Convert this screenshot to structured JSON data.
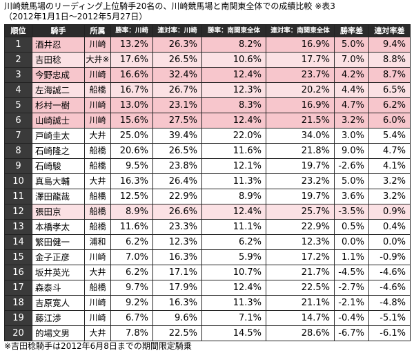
{
  "header": {
    "title": "川崎競馬場のリーディング上位騎手20名の、川崎競馬場と南関東全体での成績比較 ※表3",
    "subtitle": "（2012年1月1日〜2012年5月27日）"
  },
  "table": {
    "columns": [
      "順位",
      "騎手",
      "所属",
      "勝率：川崎",
      "連対率：川崎",
      "勝率：南関東全体",
      "連対率：南関東全体",
      "勝率差",
      "連対率差"
    ],
    "rows": [
      {
        "rank": "1",
        "name": "酒井忍",
        "aff": "川崎",
        "win_k": "13.2%",
        "place_k": "26.3%",
        "win_s": "8.2%",
        "place_s": "16.9%",
        "win_diff": "5.0%",
        "place_diff": "9.4%",
        "hl": "hl1"
      },
      {
        "rank": "2",
        "name": "吉田稔",
        "aff": "大井※",
        "win_k": "17.6%",
        "place_k": "26.5%",
        "win_s": "10.6%",
        "place_s": "17.7%",
        "win_diff": "7.0%",
        "place_diff": "8.8%",
        "hl": "hl2"
      },
      {
        "rank": "3",
        "name": "今野忠成",
        "aff": "川崎",
        "win_k": "16.6%",
        "place_k": "32.4%",
        "win_s": "12.4%",
        "place_s": "23.7%",
        "win_diff": "4.2%",
        "place_diff": "8.7%",
        "hl": "hl1"
      },
      {
        "rank": "4",
        "name": "左海誠二",
        "aff": "船橋",
        "win_k": "16.7%",
        "place_k": "26.7%",
        "win_s": "12.3%",
        "place_s": "20.2%",
        "win_diff": "4.4%",
        "place_diff": "6.5%",
        "hl": "hl2"
      },
      {
        "rank": "5",
        "name": "杉村一樹",
        "aff": "川崎",
        "win_k": "13.0%",
        "place_k": "23.1%",
        "win_s": "8.3%",
        "place_s": "16.9%",
        "win_diff": "4.7%",
        "place_diff": "6.2%",
        "hl": "hl1"
      },
      {
        "rank": "6",
        "name": "山崎誠士",
        "aff": "川崎",
        "win_k": "15.6%",
        "place_k": "27.5%",
        "win_s": "12.4%",
        "place_s": "21.5%",
        "win_diff": "3.2%",
        "place_diff": "6.0%",
        "hl": "hl1"
      },
      {
        "rank": "7",
        "name": "戸崎圭太",
        "aff": "大井",
        "win_k": "25.0%",
        "place_k": "39.4%",
        "win_s": "22.0%",
        "place_s": "34.0%",
        "win_diff": "3.0%",
        "place_diff": "5.4%",
        "hl": ""
      },
      {
        "rank": "8",
        "name": "石崎隆之",
        "aff": "船橋",
        "win_k": "20.6%",
        "place_k": "26.5%",
        "win_s": "11.6%",
        "place_s": "21.8%",
        "win_diff": "9.0%",
        "place_diff": "4.7%",
        "hl": ""
      },
      {
        "rank": "9",
        "name": "石崎駿",
        "aff": "船橋",
        "win_k": "9.5%",
        "place_k": "23.8%",
        "win_s": "12.1%",
        "place_s": "19.7%",
        "win_diff": "-2.6%",
        "place_diff": "4.1%",
        "hl": ""
      },
      {
        "rank": "10",
        "name": "真島大輔",
        "aff": "大井",
        "win_k": "16.3%",
        "place_k": "26.4%",
        "win_s": "11.3%",
        "place_s": "23.2%",
        "win_diff": "5.0%",
        "place_diff": "3.2%",
        "hl": ""
      },
      {
        "rank": "11",
        "name": "澤田龍哉",
        "aff": "船橋",
        "win_k": "12.5%",
        "place_k": "22.9%",
        "win_s": "8.9%",
        "place_s": "19.7%",
        "win_diff": "3.6%",
        "place_diff": "3.2%",
        "hl": ""
      },
      {
        "rank": "12",
        "name": "張田京",
        "aff": "船橋",
        "win_k": "8.9%",
        "place_k": "26.6%",
        "win_s": "12.4%",
        "place_s": "25.7%",
        "win_diff": "-3.5%",
        "place_diff": "0.9%",
        "hl": "hl2"
      },
      {
        "rank": "13",
        "name": "本橋孝太",
        "aff": "船橋",
        "win_k": "11.6%",
        "place_k": "23.3%",
        "win_s": "11.1%",
        "place_s": "22.9%",
        "win_diff": "0.5%",
        "place_diff": "0.4%",
        "hl": ""
      },
      {
        "rank": "14",
        "name": "繁田健一",
        "aff": "浦和",
        "win_k": "6.2%",
        "place_k": "12.3%",
        "win_s": "6.2%",
        "place_s": "12.3%",
        "win_diff": "0.0%",
        "place_diff": "0.0%",
        "hl": ""
      },
      {
        "rank": "15",
        "name": "金子正彦",
        "aff": "川崎",
        "win_k": "7.0%",
        "place_k": "16.3%",
        "win_s": "5.9%",
        "place_s": "17.2%",
        "win_diff": "1.1%",
        "place_diff": "-0.9%",
        "hl": ""
      },
      {
        "rank": "16",
        "name": "坂井英光",
        "aff": "大井",
        "win_k": "6.2%",
        "place_k": "17.1%",
        "win_s": "10.7%",
        "place_s": "21.7%",
        "win_diff": "-4.5%",
        "place_diff": "-4.6%",
        "hl": ""
      },
      {
        "rank": "17",
        "name": "森泰斗",
        "aff": "船橋",
        "win_k": "9.7%",
        "place_k": "17.9%",
        "win_s": "12.4%",
        "place_s": "22.5%",
        "win_diff": "-2.7%",
        "place_diff": "-4.6%",
        "hl": ""
      },
      {
        "rank": "18",
        "name": "吉原寛人",
        "aff": "川崎",
        "win_k": "9.2%",
        "place_k": "16.3%",
        "win_s": "11.3%",
        "place_s": "21.1%",
        "win_diff": "-2.1%",
        "place_diff": "-4.8%",
        "hl": ""
      },
      {
        "rank": "19",
        "name": "藤江渉",
        "aff": "川崎",
        "win_k": "6.7%",
        "place_k": "9.6%",
        "win_s": "7.1%",
        "place_s": "14.7%",
        "win_diff": "-0.4%",
        "place_diff": "-5.1%",
        "hl": ""
      },
      {
        "rank": "20",
        "name": "的場文男",
        "aff": "大井",
        "win_k": "7.8%",
        "place_k": "22.5%",
        "win_s": "14.5%",
        "place_s": "28.6%",
        "win_diff": "-6.7%",
        "place_diff": "-6.1%",
        "hl": ""
      }
    ]
  },
  "footnote": "※吉田稔騎手は2012年6月8日までの期間限定騎乗"
}
